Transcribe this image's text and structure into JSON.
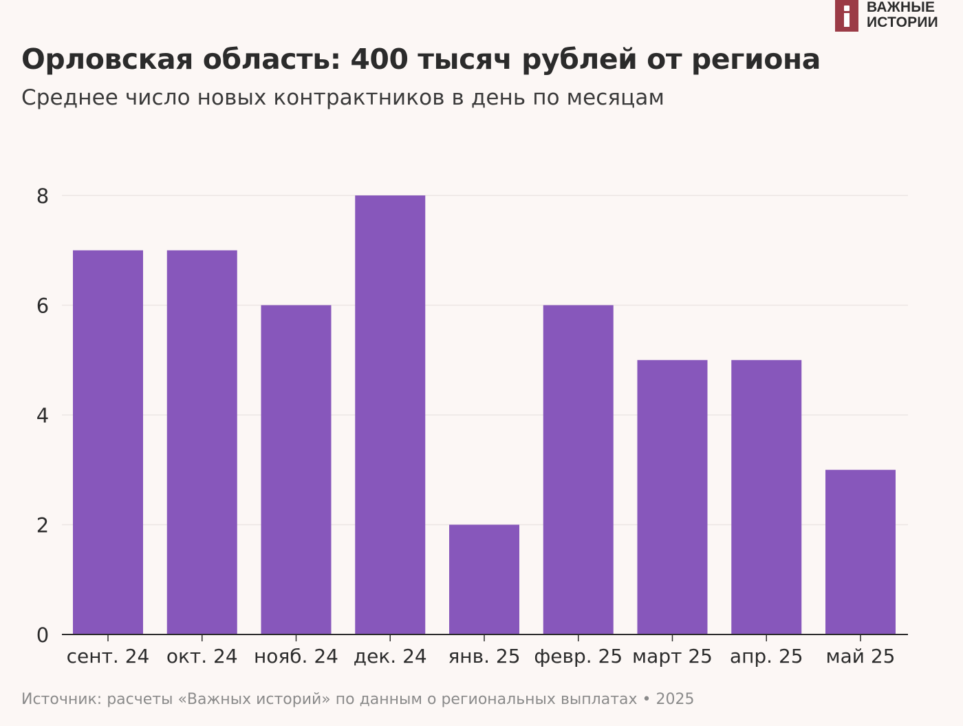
{
  "brand": {
    "line1": "ВАЖНЫЕ",
    "line2": "ИСТОРИИ",
    "color": "#9b3b46"
  },
  "source": "Источник: расчеты «Важных историй» по данным о региональных выплатах • 2025",
  "chart_data": {
    "type": "bar",
    "title": "Орловская область: 400 тысяч рублей от региона",
    "subtitle": "Среднее число новых контрактников в день по месяцам",
    "categories": [
      "сент. 24",
      "окт. 24",
      "нояб. 24",
      "дек. 24",
      "янв. 25",
      "февр. 25",
      "март 25",
      "апр. 25",
      "май 25"
    ],
    "values": [
      7,
      7,
      6,
      8,
      2,
      6,
      5,
      5,
      3
    ],
    "yticks": [
      0,
      2,
      4,
      6,
      8
    ],
    "ylim": [
      0,
      8
    ],
    "xlabel": "",
    "ylabel": "",
    "grid": true,
    "bar_color": "#8757bb",
    "grid_color": "#ece6e4",
    "axis_color": "#2b2b2b"
  }
}
